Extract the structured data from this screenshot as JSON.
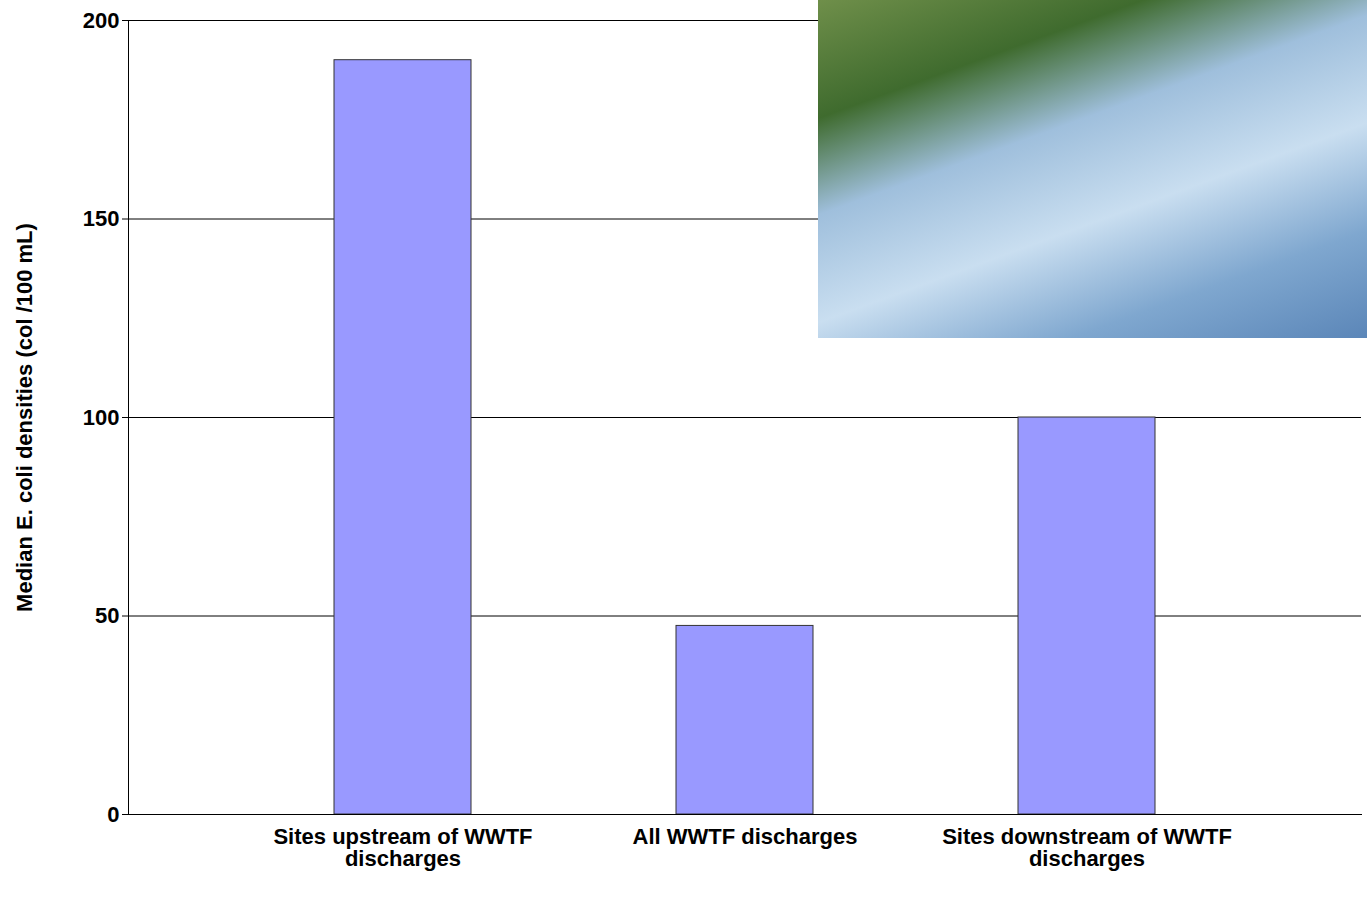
{
  "chart_data": {
    "type": "bar",
    "categories": [
      "Sites upstream of WWTF discharges",
      "All WWTF discharges",
      "Sites downstream of WWTF discharges"
    ],
    "values": [
      190,
      47.5,
      100
    ],
    "color": "#9999ff",
    "y_label": "Median E. coli densities (col /100 mL)",
    "ylim": [
      0,
      200
    ],
    "yticks": [
      0,
      50,
      100,
      150,
      200
    ],
    "grid": true
  }
}
